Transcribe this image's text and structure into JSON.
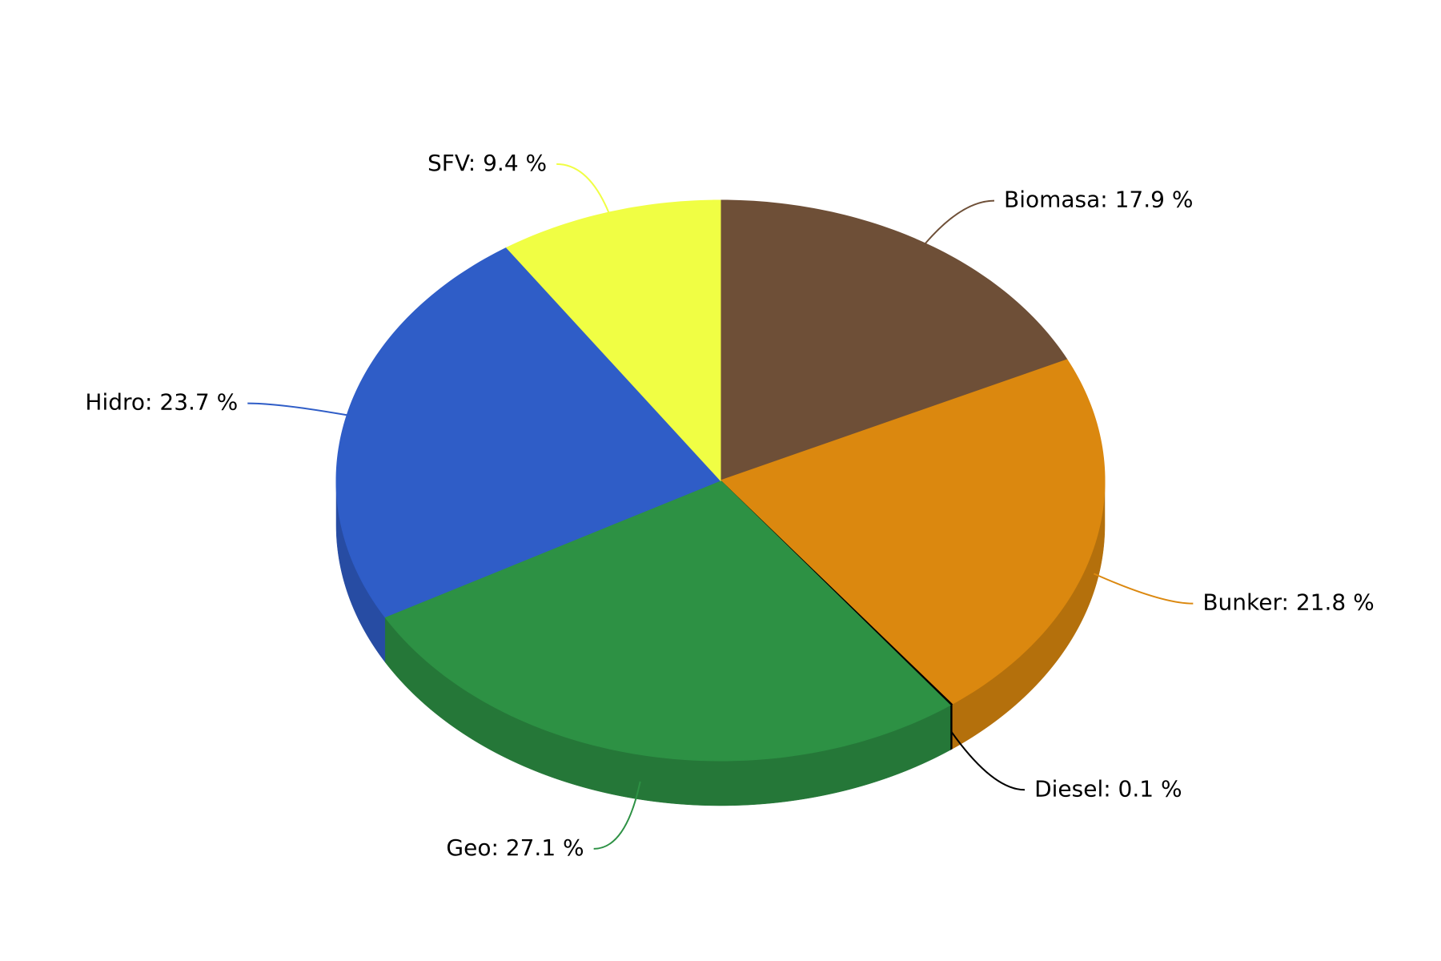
{
  "chart_data": {
    "type": "pie3d",
    "categories": [
      "Biomasa",
      "Bunker",
      "Diesel",
      "Geo",
      "Hidro",
      "SFV"
    ],
    "values": [
      17.9,
      21.8,
      0.1,
      27.1,
      23.7,
      9.4
    ],
    "value_labels": [
      "Biomasa: 17.9 %",
      "Bunker: 21.8 %",
      "Diesel: 0.1 %",
      "Geo: 27.1 %",
      "Hidro: 23.7 %",
      "SFV: 9.4 %"
    ],
    "colors": [
      "#6e4f37",
      "#db880f",
      "#000000",
      "#2d9144",
      "#2f5dc7",
      "#f0fe44"
    ]
  }
}
